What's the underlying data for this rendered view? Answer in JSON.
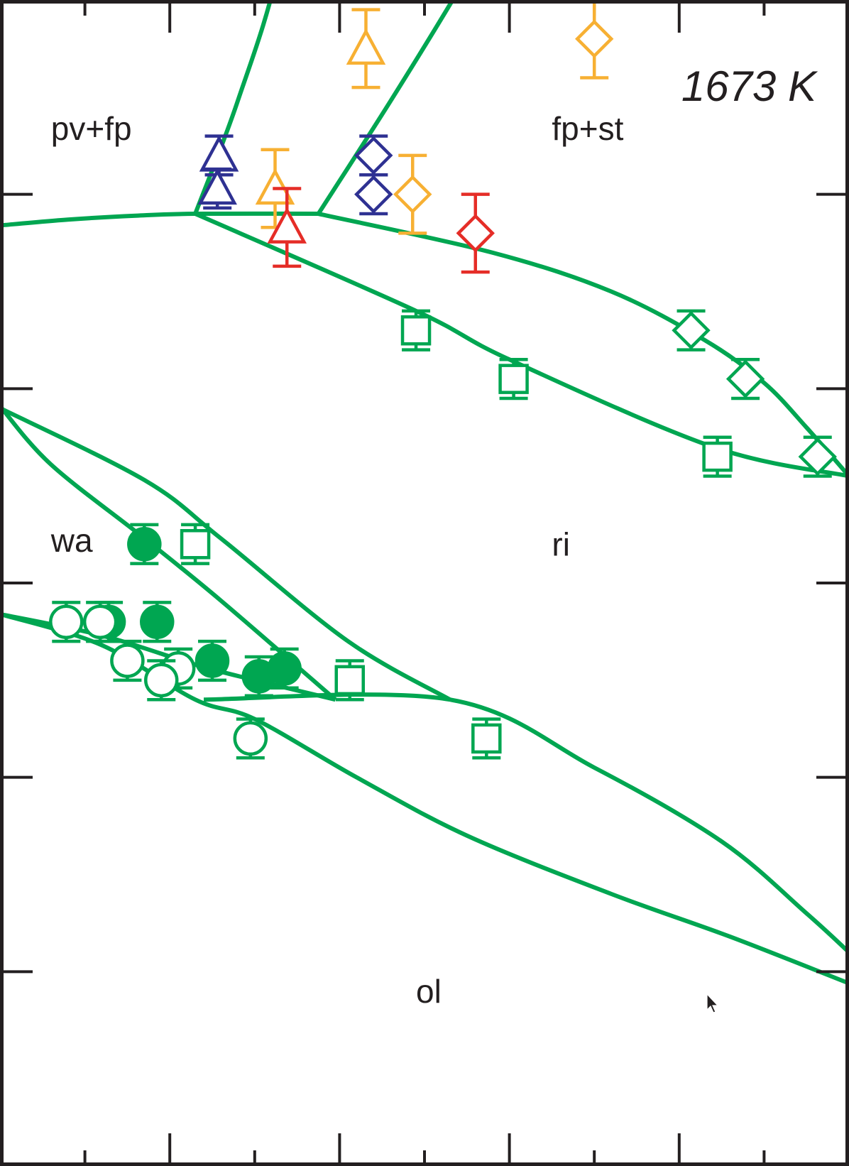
{
  "chart_data": {
    "type": "scatter",
    "title": "",
    "xlabel": "",
    "ylabel": "",
    "xlim": [
      0,
      10
    ],
    "ylim": [
      0,
      6
    ],
    "grid": false,
    "legend": "none",
    "colors": {
      "boundary": "#00a651",
      "green": "#00a651",
      "blue": "#2e3192",
      "orange": "#f7b033",
      "red": "#e52d27",
      "frame": "#231f20"
    },
    "ticks": {
      "x_major": [
        2,
        4,
        6,
        8
      ],
      "x_minor": [
        1,
        3,
        5,
        7,
        9
      ],
      "y_major": [
        1,
        2,
        3,
        4,
        5
      ]
    },
    "annotation": "1673 K",
    "region_labels": [
      {
        "key": "pv_fp",
        "text": "pv+fp",
        "x": 0.6,
        "y": 5.28
      },
      {
        "key": "fp_st",
        "text": "fp+st",
        "x": 6.5,
        "y": 5.28
      },
      {
        "key": "wa",
        "text": "wa",
        "x": 0.6,
        "y": 3.16
      },
      {
        "key": "ri",
        "text": "ri",
        "x": 6.5,
        "y": 3.14
      },
      {
        "key": "ol",
        "text": "ol",
        "x": 4.9,
        "y": 0.84
      }
    ],
    "boundaries": [
      {
        "name": "pv-fp-upper",
        "points": [
          [
            0,
            4.84
          ],
          [
            0.8,
            4.87
          ],
          [
            1.6,
            4.89
          ],
          [
            2.3,
            4.9
          ],
          [
            3.75,
            4.9
          ]
        ]
      },
      {
        "name": "pv-left-vertical",
        "points": [
          [
            2.3,
            4.9
          ],
          [
            2.8,
            5.48
          ],
          [
            3.3,
            6.2
          ],
          [
            3.8,
            7.4
          ]
        ]
      },
      {
        "name": "st-right-vertical",
        "points": [
          [
            3.75,
            4.9
          ],
          [
            4.6,
            5.48
          ],
          [
            5.4,
            6.05
          ],
          [
            6.1,
            6.58
          ]
        ]
      },
      {
        "name": "ri-fpst-upper",
        "points": [
          [
            3.75,
            4.9
          ],
          [
            5.8,
            4.7
          ],
          [
            7.2,
            4.5
          ],
          [
            8.3,
            4.25
          ],
          [
            9.0,
            4.03
          ],
          [
            9.5,
            3.8
          ],
          [
            10,
            3.55
          ]
        ]
      },
      {
        "name": "ri-fpst-lower",
        "points": [
          [
            2.3,
            4.9
          ],
          [
            4.9,
            4.4
          ],
          [
            6.0,
            4.15
          ],
          [
            8.4,
            3.7
          ],
          [
            10,
            3.55
          ]
        ]
      },
      {
        "name": "wa-ri-upper",
        "points": [
          [
            0,
            3.9
          ],
          [
            1.7,
            3.53
          ],
          [
            2.6,
            3.23
          ],
          [
            4.1,
            2.7
          ],
          [
            5.3,
            2.4
          ]
        ]
      },
      {
        "name": "wa-ri-lower",
        "points": [
          [
            0,
            3.91
          ],
          [
            0.6,
            3.61
          ],
          [
            1.7,
            3.23
          ],
          [
            2.6,
            2.91
          ],
          [
            3.95,
            2.4
          ]
        ]
      },
      {
        "name": "wa-ol-upper",
        "points": [
          [
            0,
            2.84
          ],
          [
            1.2,
            2.73
          ],
          [
            2.3,
            2.58
          ],
          [
            3.0,
            2.5
          ],
          [
            3.95,
            2.4
          ]
        ]
      },
      {
        "name": "wa-ol-lower",
        "points": [
          [
            0,
            2.84
          ],
          [
            1.2,
            2.68
          ],
          [
            2.3,
            2.4
          ],
          [
            3.0,
            2.3
          ],
          [
            4.2,
            2.0
          ],
          [
            5.5,
            1.7
          ],
          [
            7.2,
            1.4
          ],
          [
            8.6,
            1.18
          ],
          [
            10,
            0.94
          ]
        ]
      },
      {
        "name": "ri-ol-lower",
        "points": [
          [
            2.4,
            2.4
          ],
          [
            5.3,
            2.4
          ],
          [
            7.0,
            2.05
          ],
          [
            8.5,
            1.67
          ],
          [
            9.5,
            1.3
          ],
          [
            10,
            1.1
          ]
        ]
      }
    ],
    "series": [
      {
        "marker": "triangle",
        "color": "blue",
        "filled": false,
        "points": [
          {
            "x": 2.58,
            "y": 5.2,
            "err": 0.1
          },
          {
            "x": 2.56,
            "y": 5.03,
            "err": 0.1
          }
        ]
      },
      {
        "marker": "triangle",
        "color": "orange",
        "filled": false,
        "points": [
          {
            "x": 3.24,
            "y": 5.03,
            "err": 0.2
          },
          {
            "x": 4.31,
            "y": 5.75,
            "err": 0.2
          }
        ]
      },
      {
        "marker": "triangle",
        "color": "red",
        "filled": false,
        "points": [
          {
            "x": 3.38,
            "y": 4.83,
            "err": 0.2
          }
        ]
      },
      {
        "marker": "diamond",
        "color": "blue",
        "filled": false,
        "points": [
          {
            "x": 4.4,
            "y": 5.2,
            "err": 0.1
          },
          {
            "x": 4.4,
            "y": 5.0,
            "err": 0.1
          }
        ]
      },
      {
        "marker": "diamond",
        "color": "orange",
        "filled": false,
        "points": [
          {
            "x": 4.86,
            "y": 5.0,
            "err": 0.2
          },
          {
            "x": 7.0,
            "y": 5.8,
            "err": 0.2
          }
        ]
      },
      {
        "marker": "diamond",
        "color": "red",
        "filled": false,
        "points": [
          {
            "x": 5.6,
            "y": 4.8,
            "err": 0.2
          }
        ]
      },
      {
        "marker": "diamond",
        "color": "green",
        "filled": false,
        "points": [
          {
            "x": 8.14,
            "y": 4.3,
            "err": 0.1
          },
          {
            "x": 8.78,
            "y": 4.05,
            "err": 0.1
          },
          {
            "x": 9.63,
            "y": 3.65,
            "err": 0.1
          }
        ]
      },
      {
        "marker": "square",
        "color": "green",
        "filled": false,
        "points": [
          {
            "x": 4.9,
            "y": 4.3,
            "err": 0.1
          },
          {
            "x": 6.05,
            "y": 4.05,
            "err": 0.1
          },
          {
            "x": 8.45,
            "y": 3.65,
            "err": 0.1
          },
          {
            "x": 2.3,
            "y": 3.2,
            "err": 0.1
          },
          {
            "x": 4.12,
            "y": 2.5,
            "err": 0.1
          },
          {
            "x": 5.73,
            "y": 2.2,
            "err": 0.1
          }
        ]
      },
      {
        "marker": "circle",
        "color": "green",
        "filled": true,
        "points": [
          {
            "x": 1.7,
            "y": 3.2,
            "err": 0.1
          },
          {
            "x": 1.28,
            "y": 2.8,
            "err": 0.1
          },
          {
            "x": 1.85,
            "y": 2.8,
            "err": 0.1
          },
          {
            "x": 2.5,
            "y": 2.6,
            "err": 0.1
          },
          {
            "x": 3.05,
            "y": 2.52,
            "err": 0.1
          },
          {
            "x": 3.35,
            "y": 2.56,
            "err": 0.1
          }
        ]
      },
      {
        "marker": "circle",
        "color": "green",
        "filled": false,
        "points": [
          {
            "x": 0.78,
            "y": 2.8,
            "err": 0.1
          },
          {
            "x": 1.18,
            "y": 2.8,
            "err": 0.1
          },
          {
            "x": 1.5,
            "y": 2.6,
            "err": 0.1
          },
          {
            "x": 2.1,
            "y": 2.56,
            "err": 0.1
          },
          {
            "x": 1.9,
            "y": 2.5,
            "err": 0.1
          },
          {
            "x": 2.95,
            "y": 2.2,
            "err": 0.1
          }
        ]
      }
    ]
  }
}
